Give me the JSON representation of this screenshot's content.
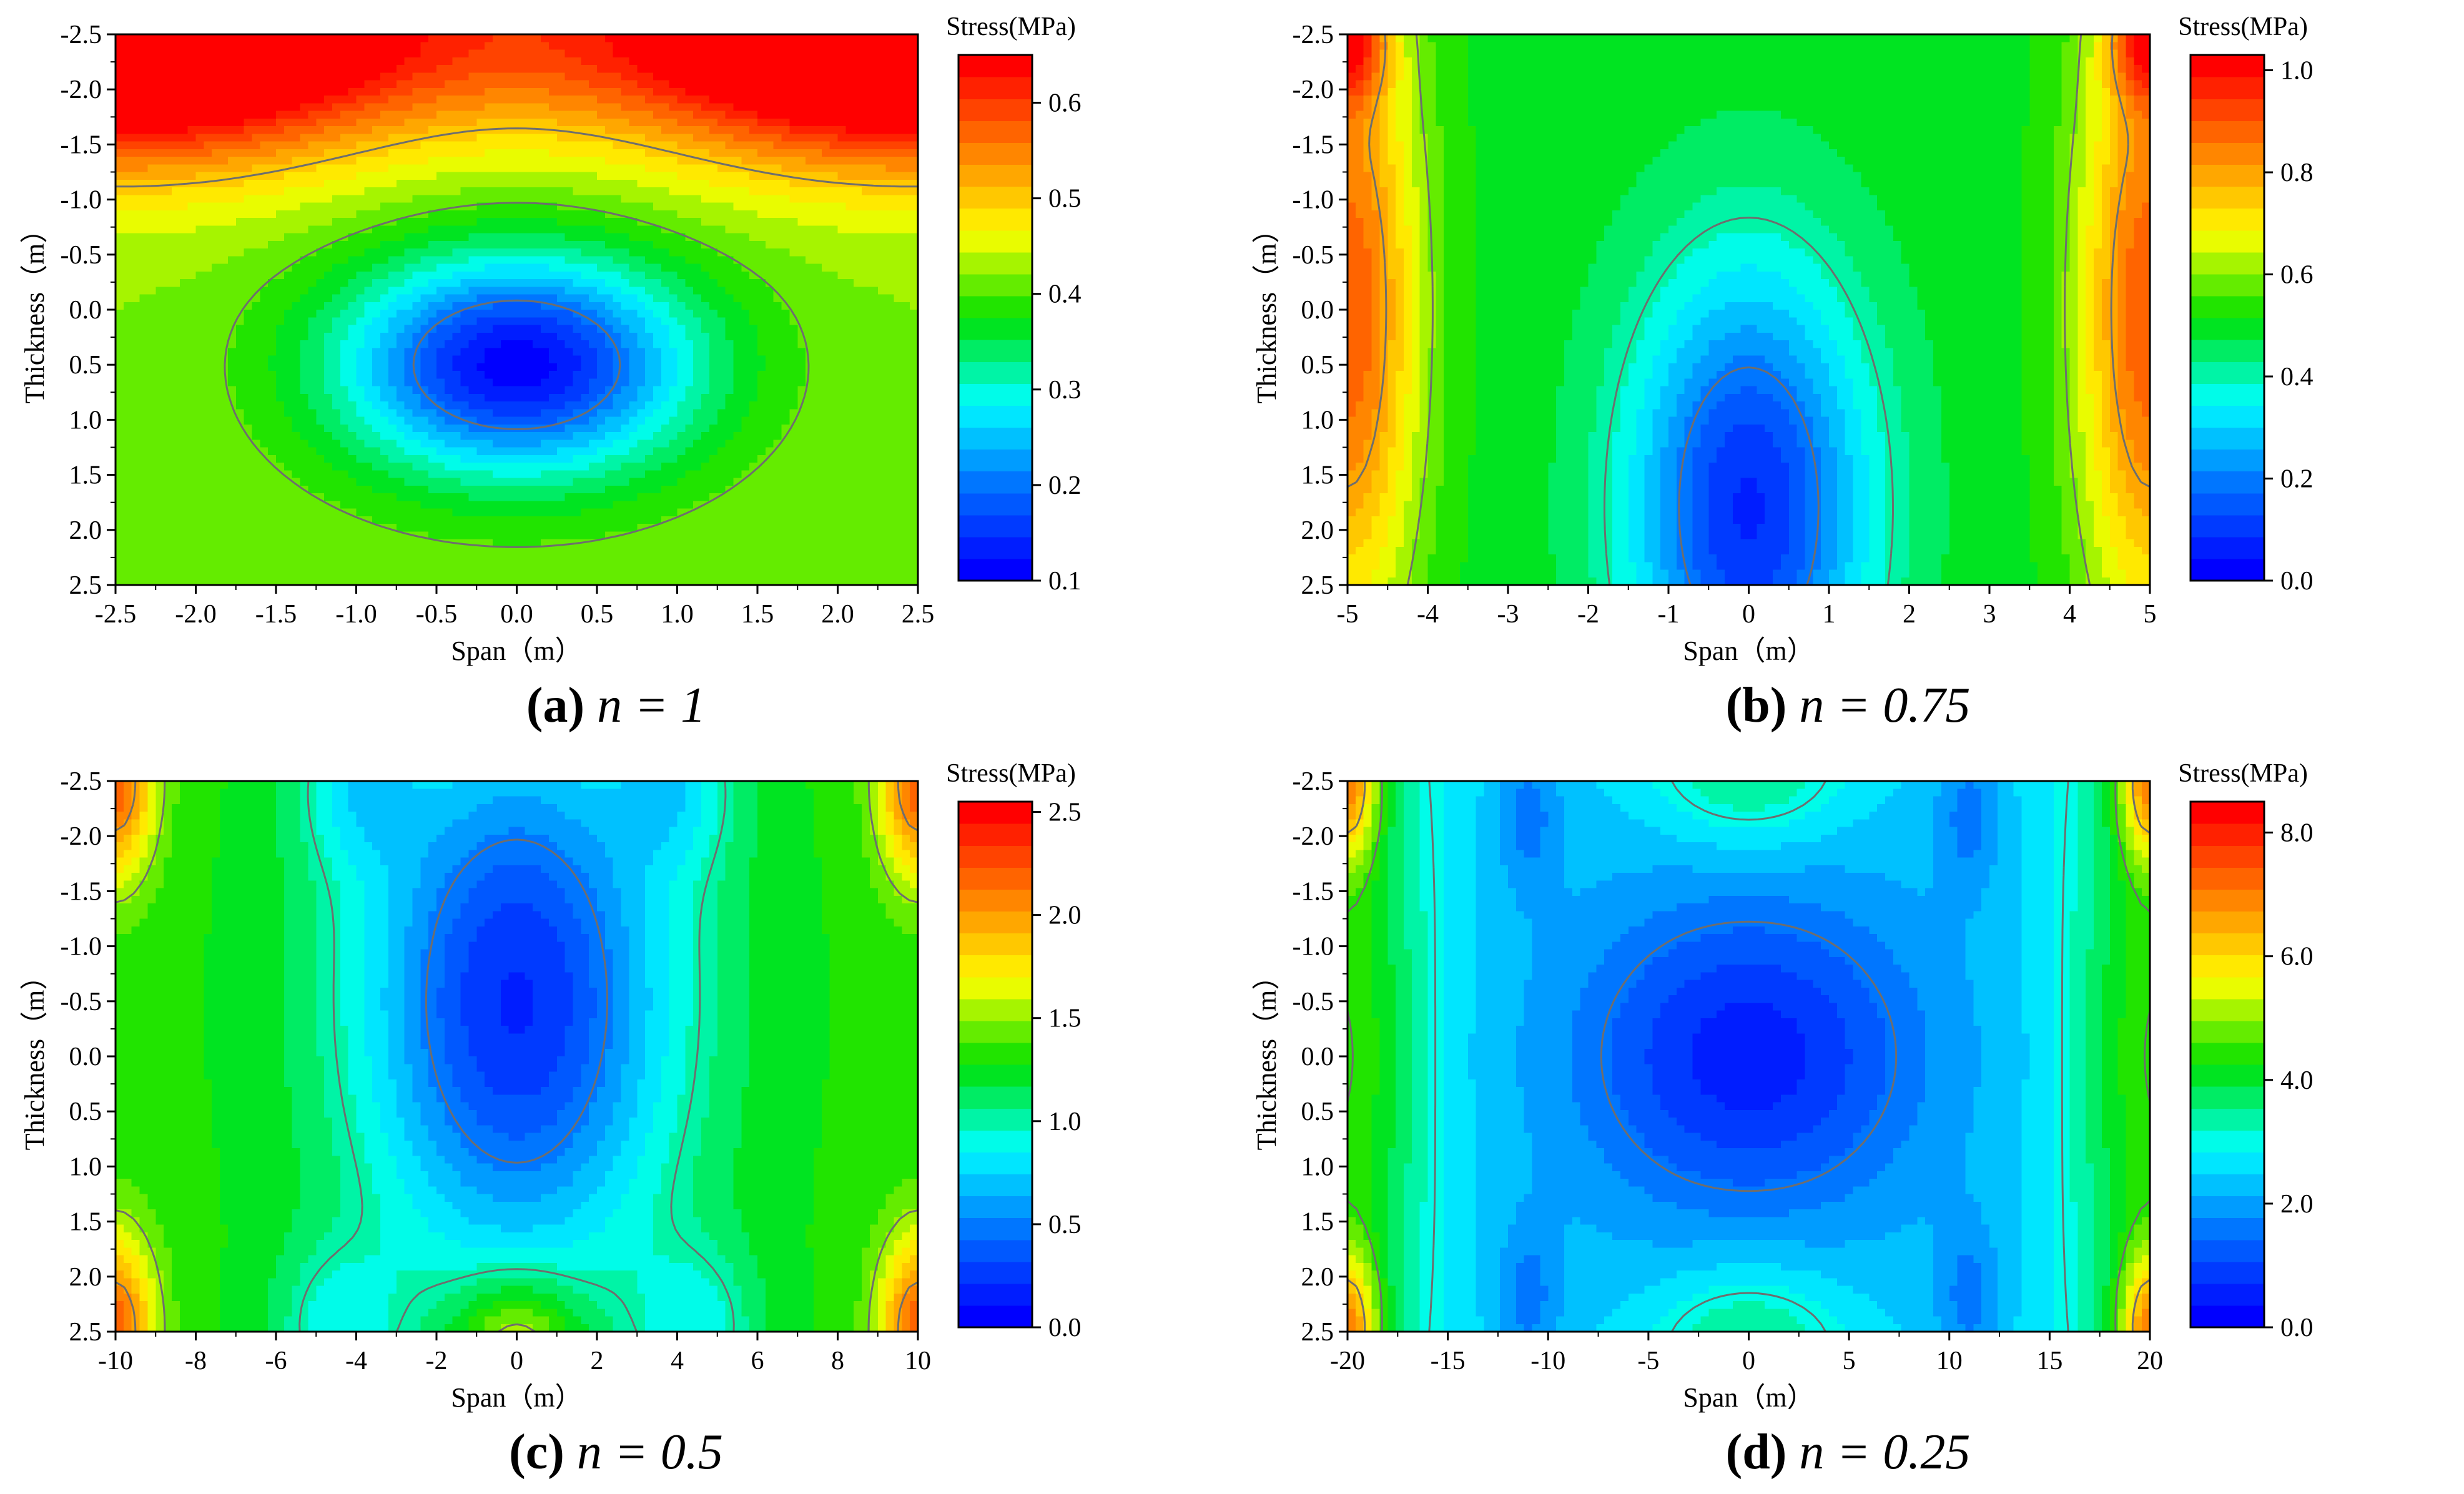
{
  "colors": {
    "colormap": [
      "#0000ff",
      "#0070ff",
      "#00ffff",
      "#00e000",
      "#ffff00",
      "#ff8000",
      "#ff0000"
    ],
    "contour_line": "#6e6e6e",
    "axis": "#000000"
  },
  "chart_data": [
    {
      "type": "heatmap",
      "panel_letter": "(a)",
      "panel_equation": "n = 1",
      "xlabel": "Span（m）",
      "ylabel": "Thickness（m）",
      "colorbar_title": "Stress(MPa)",
      "xlim": [
        -2.5,
        2.5
      ],
      "ylim": [
        -2.5,
        2.5
      ],
      "y_inverted": true,
      "x_ticks": [
        "-2.5",
        "-2.0",
        "-1.5",
        "-1.0",
        "-0.5",
        "0.0",
        "0.5",
        "1.0",
        "1.5",
        "2.0",
        "2.5"
      ],
      "y_ticks": [
        "-2.5",
        "-2.0",
        "-1.5",
        "-1.0",
        "-0.5",
        "0.0",
        "0.5",
        "1.0",
        "1.5",
        "2.0",
        "2.5"
      ],
      "colorbar_range": [
        0.1,
        0.65
      ],
      "colorbar_ticks": [
        "0.1",
        "0.2",
        "0.3",
        "0.4",
        "0.5",
        "0.6"
      ],
      "contour_levels": [
        0.2,
        0.4,
        0.5
      ],
      "field": {
        "base": 0.42,
        "terms": [
          {
            "amp": -0.31,
            "x": 0.0,
            "y": 0.5,
            "sx": 1.1,
            "sy": 1.0
          },
          {
            "amp": 0.36,
            "x": -2.5,
            "y": -2.5,
            "sx": 1.6,
            "sy": 1.1
          },
          {
            "amp": 0.36,
            "x": 2.5,
            "y": -2.5,
            "sx": 1.6,
            "sy": 1.1
          },
          {
            "amp": 0.12,
            "x": 0.0,
            "y": -2.5,
            "sx": 3.0,
            "sy": 0.9
          }
        ]
      }
    },
    {
      "type": "heatmap",
      "panel_letter": "(b)",
      "panel_equation": "n = 0.75",
      "xlabel": "Span（m）",
      "ylabel": "Thickness（m）",
      "colorbar_title": "Stress(MPa)",
      "xlim": [
        -5,
        5
      ],
      "ylim": [
        -2.5,
        2.5
      ],
      "y_inverted": true,
      "x_ticks": [
        "-5",
        "-4",
        "-3",
        "-2",
        "-1",
        "0",
        "1",
        "2",
        "3",
        "4",
        "5"
      ],
      "y_ticks": [
        "-2.5",
        "-2.0",
        "-1.5",
        "-1.0",
        "-0.5",
        "0.0",
        "0.5",
        "1.0",
        "1.5",
        "2.0",
        "2.5"
      ],
      "colorbar_range": [
        0.0,
        1.03
      ],
      "colorbar_ticks": [
        "0.0",
        "0.2",
        "0.4",
        "0.6",
        "0.8",
        "1.0"
      ],
      "contour_levels": [
        0.2,
        0.4,
        0.6,
        0.8
      ],
      "field": {
        "base": 0.5,
        "terms": [
          {
            "amp": -0.42,
            "x": 0.0,
            "y": 1.8,
            "sx": 1.5,
            "sy": 2.2
          },
          {
            "amp": 0.4,
            "x": -5.0,
            "y": 0.0,
            "sx": 0.9,
            "sy": 3.0
          },
          {
            "amp": 0.4,
            "x": 5.0,
            "y": 0.0,
            "sx": 0.9,
            "sy": 3.0
          },
          {
            "amp": 0.35,
            "x": -5.0,
            "y": -2.5,
            "sx": 0.5,
            "sy": 0.6
          },
          {
            "amp": 0.35,
            "x": 5.0,
            "y": -2.5,
            "sx": 0.5,
            "sy": 0.6
          }
        ]
      }
    },
    {
      "type": "heatmap",
      "panel_letter": "(c)",
      "panel_equation": "n = 0.5",
      "xlabel": "Span（m）",
      "ylabel": "Thickness（m）",
      "colorbar_title": "Stress(MPa)",
      "xlim": [
        -10,
        10
      ],
      "ylim": [
        -2.5,
        2.5
      ],
      "y_inverted": true,
      "x_ticks": [
        "-10",
        "-8",
        "-6",
        "-4",
        "-2",
        "0",
        "2",
        "4",
        "6",
        "8",
        "10"
      ],
      "y_ticks": [
        "-2.5",
        "-2.0",
        "-1.5",
        "-1.0",
        "-0.5",
        "0.0",
        "0.5",
        "1.0",
        "1.5",
        "2.0",
        "2.5"
      ],
      "colorbar_range": [
        0.0,
        2.55
      ],
      "colorbar_ticks": [
        "0.0",
        "0.5",
        "1.0",
        "1.5",
        "2.0",
        "2.5"
      ],
      "contour_levels": [
        0.5,
        1.0,
        1.5,
        2.0
      ],
      "field": {
        "base": 1.3,
        "terms": [
          {
            "amp": -1.1,
            "x": 0.0,
            "y": -0.5,
            "sx": 4.0,
            "sy": 2.6
          },
          {
            "amp": -0.35,
            "x": -4.0,
            "y": -2.5,
            "sx": 1.5,
            "sy": 0.8
          },
          {
            "amp": -0.35,
            "x": 4.0,
            "y": -2.5,
            "sx": 1.5,
            "sy": 0.8
          },
          {
            "amp": -0.35,
            "x": -4.5,
            "y": 2.5,
            "sx": 1.6,
            "sy": 0.8
          },
          {
            "amp": -0.35,
            "x": 4.5,
            "y": 2.5,
            "sx": 1.6,
            "sy": 0.8
          },
          {
            "amp": 0.55,
            "x": 0.0,
            "y": 2.6,
            "sx": 1.5,
            "sy": 0.6
          },
          {
            "amp": 0.9,
            "x": -10.0,
            "y": -2.5,
            "sx": 1.0,
            "sy": 0.9
          },
          {
            "amp": 0.9,
            "x": 10.0,
            "y": -2.5,
            "sx": 1.0,
            "sy": 0.9
          },
          {
            "amp": 0.9,
            "x": -10.0,
            "y": 2.5,
            "sx": 1.0,
            "sy": 0.9
          },
          {
            "amp": 0.9,
            "x": 10.0,
            "y": 2.5,
            "sx": 1.0,
            "sy": 0.9
          }
        ]
      }
    },
    {
      "type": "heatmap",
      "panel_letter": "(d)",
      "panel_equation": "n = 0.25",
      "xlabel": "Span（m）",
      "ylabel": "Thickness（m）",
      "colorbar_title": "Stress(MPa)",
      "xlim": [
        -20,
        20
      ],
      "ylim": [
        -2.5,
        2.5
      ],
      "y_inverted": true,
      "x_ticks": [
        "-20",
        "-15",
        "-10",
        "-5",
        "0",
        "5",
        "10",
        "15",
        "20"
      ],
      "y_ticks": [
        "-2.5",
        "-2.0",
        "-1.5",
        "-1.0",
        "-0.5",
        "0.0",
        "0.5",
        "1.0",
        "1.5",
        "2.0",
        "2.5"
      ],
      "colorbar_range": [
        0.0,
        8.5
      ],
      "colorbar_ticks": [
        "0.0",
        "2.0",
        "4.0",
        "6.0",
        "8.0"
      ],
      "contour_levels": [
        1.5,
        3.0,
        4.5,
        6.0
      ],
      "field": {
        "base": 2.6,
        "terms": [
          {
            "amp": -1.5,
            "x": 0.0,
            "y": 0.0,
            "sx": 8.0,
            "sy": 1.3
          },
          {
            "amp": -0.6,
            "x": 0.0,
            "y": 0.0,
            "sx": 14.0,
            "sy": 3.0
          },
          {
            "amp": 1.3,
            "x": 0.0,
            "y": -2.6,
            "sx": 5.0,
            "sy": 0.7
          },
          {
            "amp": 1.3,
            "x": 0.0,
            "y": 2.6,
            "sx": 5.0,
            "sy": 0.7
          },
          {
            "amp": -0.8,
            "x": -11.0,
            "y": -2.2,
            "sx": 1.6,
            "sy": 0.7
          },
          {
            "amp": -0.8,
            "x": 11.0,
            "y": -2.2,
            "sx": 1.6,
            "sy": 0.7
          },
          {
            "amp": -0.8,
            "x": -11.0,
            "y": 2.2,
            "sx": 1.6,
            "sy": 0.7
          },
          {
            "amp": -0.8,
            "x": 11.0,
            "y": 2.2,
            "sx": 1.6,
            "sy": 0.7
          },
          {
            "amp": 2.0,
            "x": -20.0,
            "y": 0.0,
            "sx": 4.0,
            "sy": 4.0
          },
          {
            "amp": 2.0,
            "x": 20.0,
            "y": 0.0,
            "sx": 4.0,
            "sy": 4.0
          },
          {
            "amp": 3.0,
            "x": -20.0,
            "y": -2.5,
            "sx": 1.5,
            "sy": 0.7
          },
          {
            "amp": 3.0,
            "x": 20.0,
            "y": -2.5,
            "sx": 1.5,
            "sy": 0.7
          },
          {
            "amp": 3.0,
            "x": -20.0,
            "y": 2.5,
            "sx": 1.5,
            "sy": 0.7
          },
          {
            "amp": 3.0,
            "x": 20.0,
            "y": 2.5,
            "sx": 1.5,
            "sy": 0.7
          }
        ]
      }
    }
  ]
}
